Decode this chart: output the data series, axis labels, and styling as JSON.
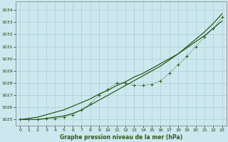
{
  "title": "Graphe pression niveau de la mer (hPa)",
  "background_color": "#cce8ee",
  "grid_color": "#aacdd6",
  "line_color": "#2d5a1b",
  "x_hours": [
    0,
    1,
    2,
    3,
    4,
    5,
    6,
    7,
    8,
    9,
    10,
    11,
    12,
    13,
    14,
    15,
    16,
    17,
    18,
    19,
    20,
    21,
    22,
    23
  ],
  "series_dotted_markers": [
    1025.0,
    1025.0,
    1025.0,
    1025.1,
    1025.1,
    1025.2,
    1025.4,
    1025.8,
    1026.3,
    1027.0,
    1027.5,
    1028.0,
    1028.0,
    1027.8,
    1027.8,
    1027.9,
    1028.2,
    1028.8,
    1029.5,
    1030.2,
    1031.0,
    1031.8,
    1032.5,
    1033.4
  ],
  "series_straight": [
    1025.0,
    1025.1,
    1025.2,
    1025.4,
    1025.6,
    1025.8,
    1026.1,
    1026.4,
    1026.7,
    1027.1,
    1027.4,
    1027.8,
    1028.1,
    1028.5,
    1028.8,
    1029.2,
    1029.6,
    1030.0,
    1030.4,
    1030.9,
    1031.4,
    1031.9,
    1032.5,
    1033.1
  ],
  "series_upper": [
    1025.0,
    1025.0,
    1025.0,
    1025.1,
    1025.2,
    1025.3,
    1025.5,
    1025.8,
    1026.2,
    1026.6,
    1027.0,
    1027.4,
    1027.8,
    1028.2,
    1028.6,
    1029.0,
    1029.4,
    1029.9,
    1030.4,
    1031.0,
    1031.6,
    1032.2,
    1032.9,
    1033.7
  ],
  "ylim": [
    1024.5,
    1034.7
  ],
  "yticks": [
    1025,
    1026,
    1027,
    1028,
    1029,
    1030,
    1031,
    1032,
    1033,
    1034
  ],
  "xlim": [
    -0.5,
    23.5
  ],
  "xticks": [
    0,
    1,
    2,
    3,
    4,
    5,
    6,
    7,
    8,
    9,
    10,
    11,
    12,
    13,
    14,
    15,
    16,
    17,
    18,
    19,
    20,
    21,
    22,
    23
  ]
}
